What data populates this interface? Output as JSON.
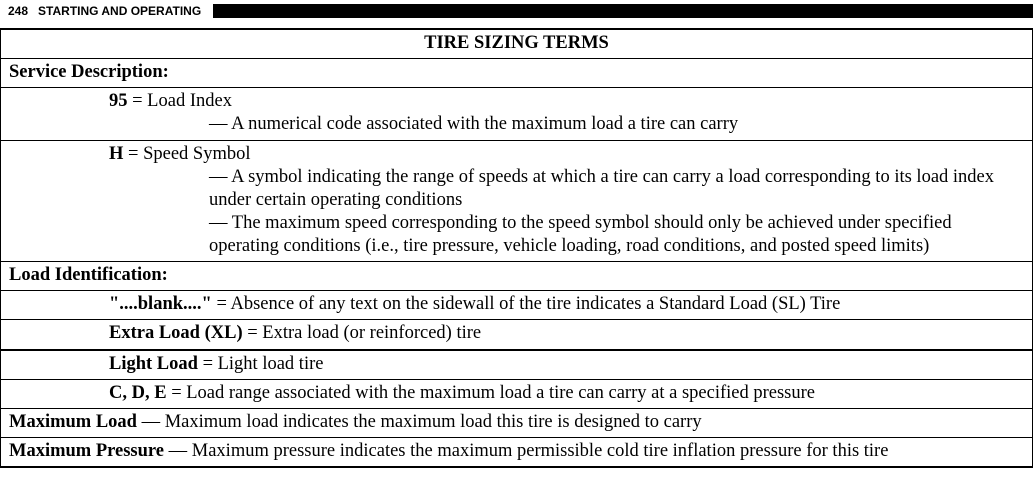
{
  "header": {
    "page_num": "248",
    "section": "STARTING AND OPERATING"
  },
  "table": {
    "title": "TIRE SIZING TERMS",
    "service_description": {
      "heading": "Service Description:",
      "row95": {
        "bold": "95",
        "eq": " = Load Index",
        "desc": "— A numerical code associated with the maximum load a tire can carry"
      },
      "rowH": {
        "bold": "H",
        "eq": " = Speed Symbol",
        "desc1": "— A symbol indicating the range of speeds at which a tire can carry a load corresponding to its load index under certain operating conditions",
        "desc2": "— The maximum speed corresponding to the speed symbol should only be achieved under specified operating conditions (i.e., tire pressure, vehicle loading, road conditions, and posted speed limits)"
      }
    },
    "load_identification": {
      "heading": "Load Identification:",
      "blank": {
        "bold": "\"....blank....\"",
        "rest": " = Absence of any text on the sidewall of the tire indicates a Standard Load (SL) Tire"
      },
      "xl": {
        "bold": "Extra Load (XL)",
        "rest": " = Extra load (or reinforced) tire"
      },
      "light": {
        "bold": "Light Load",
        "rest": " = Light load tire"
      },
      "cde": {
        "bold": "C, D, E",
        "rest": " = Load range associated with the maximum load a tire can carry at a specified pressure"
      }
    },
    "max_load": {
      "bold": "Maximum Load",
      "rest": " — Maximum load indicates the maximum load this tire is designed to carry"
    },
    "max_pressure": {
      "bold": "Maximum Pressure",
      "rest": " — Maximum pressure indicates the maximum permissible cold tire inflation pressure for this tire"
    }
  }
}
